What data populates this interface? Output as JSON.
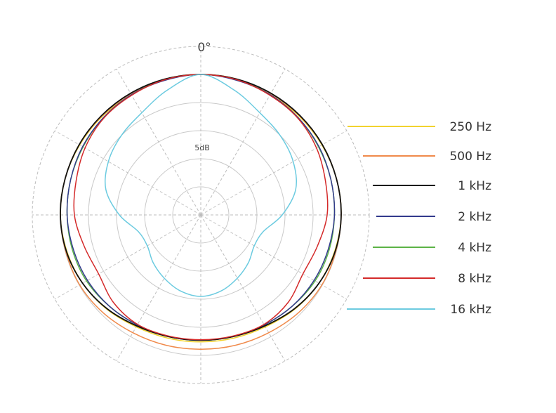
{
  "chart_data": {
    "type": "polar",
    "title": "",
    "angle_label": "0°",
    "ring_label": "5dB",
    "grid": true,
    "legend_position": "right",
    "r_domain": [
      -25,
      5
    ],
    "rings_db": [
      -20,
      -15,
      -10,
      -5,
      0,
      5
    ],
    "angles_deg": [
      0,
      15,
      30,
      45,
      60,
      75,
      90,
      105,
      120,
      135,
      150,
      165,
      180
    ],
    "series": [
      {
        "name": "250 Hz",
        "color": "#f2d22e",
        "values": [
          0,
          0,
          -0.3,
          -0.2,
          -0.1,
          0,
          0,
          -0.3,
          -0.7,
          -1.3,
          -2.0,
          -2.3,
          -2.4
        ]
      },
      {
        "name": "500 Hz",
        "color": "#f08a4b",
        "values": [
          0,
          0,
          -0.1,
          -0.1,
          0,
          0,
          0,
          -0.1,
          -0.1,
          -0.4,
          -0.8,
          -1.0,
          -1.1
        ]
      },
      {
        "name": "1 kHz",
        "color": "#111111",
        "values": [
          0,
          0,
          0,
          0,
          0,
          0,
          0,
          -0.2,
          -0.7,
          -1.4,
          -2.2,
          -2.6,
          -2.7
        ]
      },
      {
        "name": "2 kHz",
        "color": "#333a8c",
        "values": [
          0,
          -0.2,
          -0.3,
          -0.5,
          -0.7,
          -1.0,
          -1.2,
          -1.5,
          -1.7,
          -2.0,
          -2.4,
          -2.6,
          -2.7
        ]
      },
      {
        "name": "4 kHz",
        "color": "#5cb346",
        "values": [
          0,
          -0.1,
          -0.3,
          -0.5,
          -0.8,
          -1.0,
          -1.2,
          -1.3,
          -1.5,
          -2.0,
          -2.4,
          -2.6,
          -2.7
        ]
      },
      {
        "name": "8 kHz",
        "color": "#d42a2a",
        "values": [
          0,
          -0.1,
          -0.4,
          -0.6,
          -1.2,
          -2.0,
          -2.5,
          -3.5,
          -4.0,
          -3.0,
          -2.5,
          -2.7,
          -2.8
        ]
      },
      {
        "name": "16 kHz",
        "color": "#6ccbe0",
        "values": [
          0,
          -2.0,
          -4.0,
          -5.0,
          -6.0,
          -7.5,
          -10.5,
          -13.5,
          -14.0,
          -13.0,
          -12.0,
          -11.0,
          -10.5
        ]
      }
    ]
  }
}
